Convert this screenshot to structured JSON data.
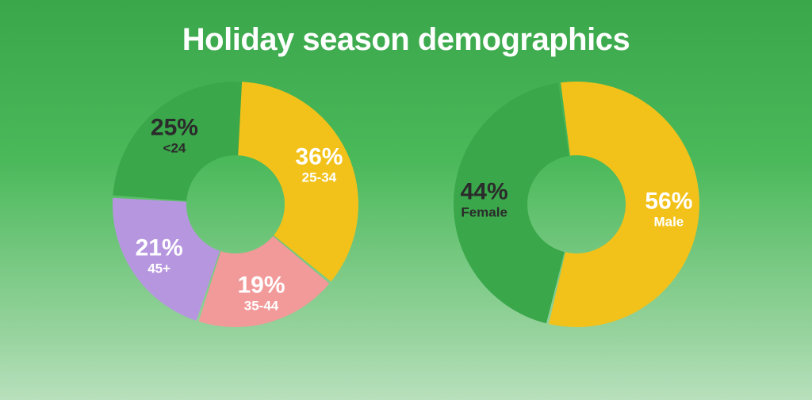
{
  "title": {
    "text": "Holiday season demographics",
    "color": "#ffffff",
    "fontsize": 40
  },
  "background": {
    "gradient_top": "#3aa74a",
    "gradient_bottom": "#b8e0bc"
  },
  "donut": {
    "outer_radius": 155,
    "inner_radius": 62,
    "gap_deg": 1.2,
    "pct_fontsize": 30,
    "cat_fontsize": 17
  },
  "charts": [
    {
      "id": "age",
      "type": "donut",
      "start_angle_deg": -90,
      "slices": [
        {
          "pct": 36,
          "label": "25-34",
          "color": "#f2c21a",
          "text_color": "#ffffff"
        },
        {
          "pct": 19,
          "label": "35-44",
          "color": "#f29999",
          "text_color": "#ffffff"
        },
        {
          "pct": 21,
          "label": "45+",
          "color": "#b796e0",
          "text_color": "#ffffff"
        },
        {
          "pct": 25,
          "label": "<24",
          "color": "#3aa74a",
          "text_color": "#2b2b2b"
        }
      ]
    },
    {
      "id": "gender",
      "type": "donut",
      "start_angle_deg": -98,
      "slices": [
        {
          "pct": 56,
          "label": "Male",
          "color": "#f2c21a",
          "text_color": "#ffffff"
        },
        {
          "pct": 44,
          "label": "Female",
          "color": "#3aa74a",
          "text_color": "#2b2b2b"
        }
      ]
    }
  ]
}
